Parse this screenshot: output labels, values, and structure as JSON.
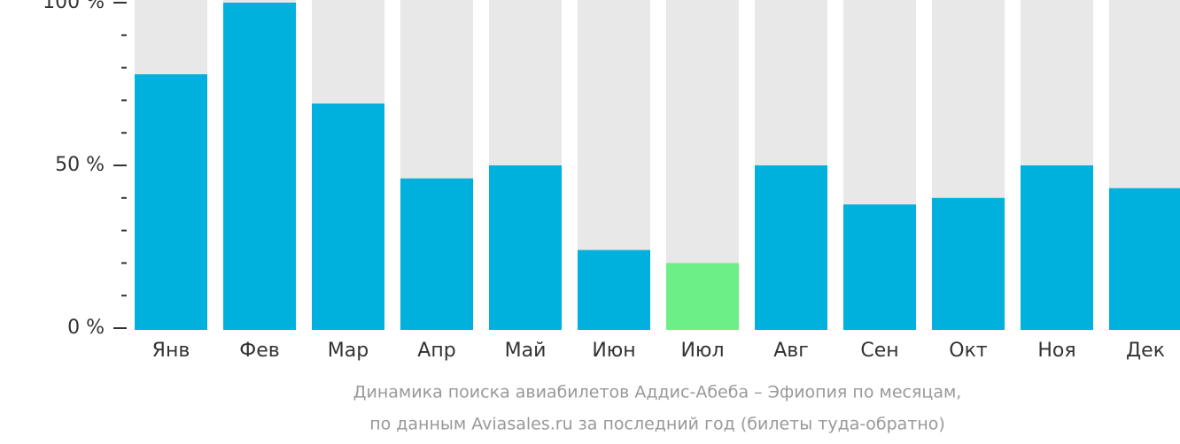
{
  "chart_data": {
    "type": "bar",
    "categories": [
      "Янв",
      "Фев",
      "Мар",
      "Апр",
      "Май",
      "Июн",
      "Июл",
      "Авг",
      "Сен",
      "Окт",
      "Ноя",
      "Дек"
    ],
    "values": [
      78,
      100,
      69,
      46,
      50,
      24,
      20,
      50,
      38,
      40,
      50,
      43
    ],
    "colors": [
      "#00b0dd",
      "#00b0dd",
      "#00b0dd",
      "#00b0dd",
      "#00b0dd",
      "#00b0dd",
      "#6def87",
      "#00b0dd",
      "#00b0dd",
      "#00b0dd",
      "#00b0dd",
      "#00b0dd"
    ],
    "background_color": "#e8e8e8",
    "ylim": [
      0,
      100
    ],
    "yticks": [
      {
        "value": 0,
        "label": "0 %"
      },
      {
        "value": 50,
        "label": "50 %"
      },
      {
        "value": 100,
        "label": "100 %"
      }
    ],
    "minor_yticks": [
      10,
      20,
      30,
      40,
      60,
      70,
      80,
      90
    ],
    "caption": [
      "Динамика поиска авиабилетов Аддис-Абеба – Эфиопия по месяцам,",
      "по данным Aviasales.ru за последний год (билеты туда-обратно)"
    ]
  }
}
